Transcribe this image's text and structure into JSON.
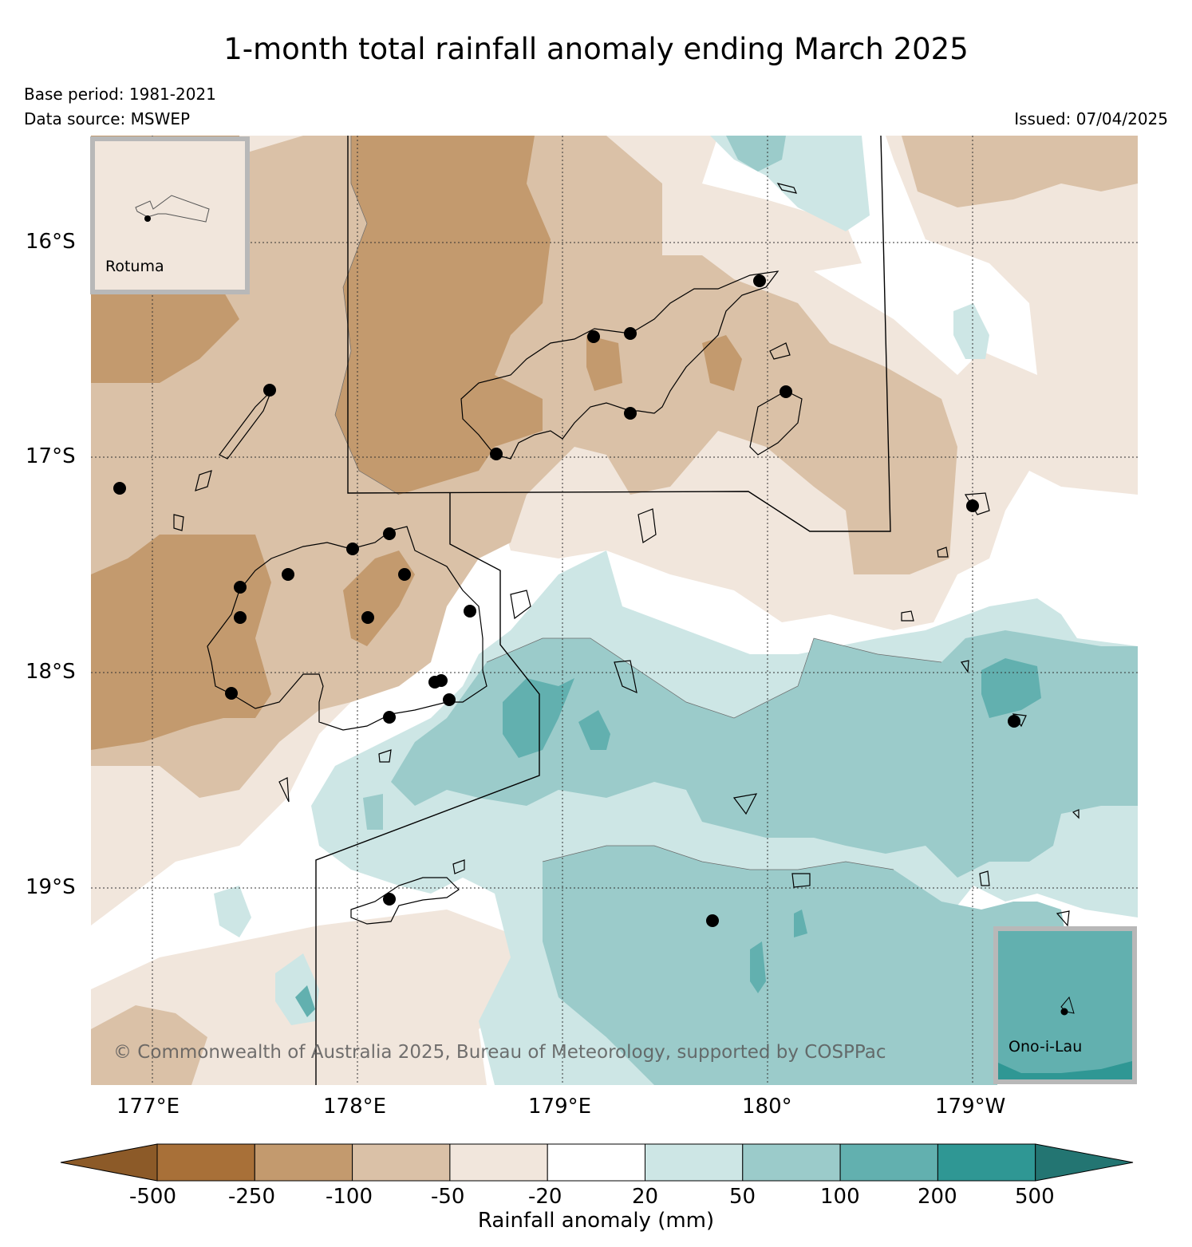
{
  "header": {
    "title": "1-month total rainfall anomaly ending March 2025",
    "base_period": "Base period: 1981-2021",
    "data_source": "Data source: MSWEP",
    "issued": "Issued: 07/04/2025"
  },
  "map": {
    "lat_labels": [
      "16°S",
      "17°S",
      "18°S",
      "19°S"
    ],
    "lon_labels": [
      "177°E",
      "178°E",
      "179°E",
      "180°",
      "179°W"
    ],
    "copyright": "© Commonwealth of Australia 2025, Bureau of Meteorology, supported by COSPPac",
    "insets": {
      "rotuma": "Rotuma",
      "ono_i_lau": "Ono-i-Lau"
    },
    "gridlines": "dotted",
    "station_markers": "black-dots"
  },
  "colorbar": {
    "label": "Rainfall anomaly (mm)",
    "ticks": [
      "-500",
      "-250",
      "-100",
      "-50",
      "-20",
      "20",
      "50",
      "100",
      "200",
      "500"
    ],
    "colors": [
      "#8c5a28",
      "#a87038",
      "#c39a6e",
      "#dac1a7",
      "#f1e6dc",
      "#ffffff",
      "#cde6e5",
      "#9bcbca",
      "#62b0af",
      "#2f9794",
      "#237572"
    ]
  }
}
